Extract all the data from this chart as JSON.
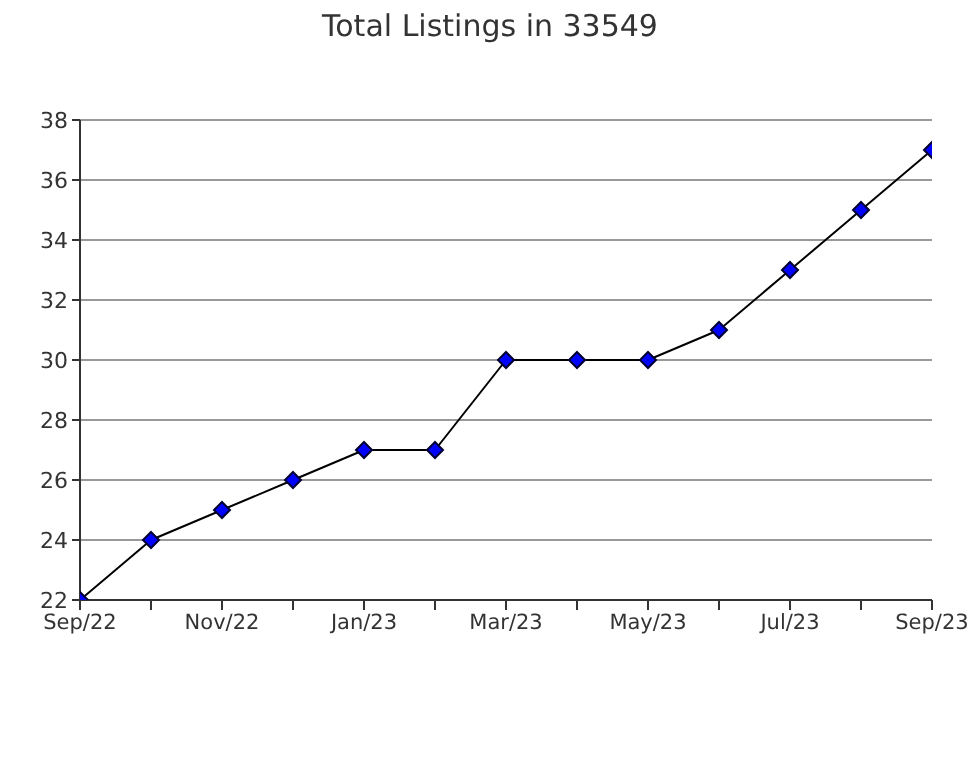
{
  "chart_data": {
    "type": "line",
    "title": "Total Listings in 33549",
    "categories": [
      "Sep/22",
      null,
      "Nov/22",
      null,
      "Jan/23",
      null,
      "Mar/23",
      null,
      "May/23",
      null,
      "Jul/23",
      null,
      "Sep/23"
    ],
    "series": [
      {
        "color": "#0000ff",
        "values": [
          22,
          24,
          25,
          26,
          27,
          27,
          30,
          30,
          30,
          31,
          33,
          35,
          37
        ]
      }
    ],
    "ylim": [
      22,
      38
    ],
    "yticks": [
      22,
      24,
      26,
      28,
      30,
      32,
      34,
      36,
      38
    ],
    "grid": "y",
    "marker": "diamond",
    "line_style": "solid"
  }
}
